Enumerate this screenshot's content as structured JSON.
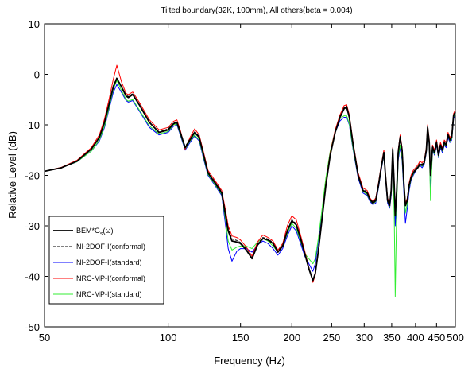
{
  "chart_data": {
    "type": "line",
    "title": "Tilted boundary(32K, 100mm), All others(beta = 0.004)",
    "xlabel": "Frequency (Hz)",
    "ylabel": "Relative Level (dB)",
    "xscale": "log",
    "xlim": [
      50,
      500
    ],
    "ylim": [
      -50,
      10
    ],
    "xticks": [
      50,
      100,
      150,
      200,
      250,
      300,
      350,
      400,
      450,
      500
    ],
    "xtick_labels": [
      "50",
      "100",
      "150",
      "200",
      "250",
      "300",
      "350",
      "400",
      "450",
      "500"
    ],
    "yticks": [
      -50,
      -40,
      -30,
      -20,
      -10,
      0,
      10
    ],
    "ytick_labels": [
      "-50",
      "-40",
      "-30",
      "-20",
      "-10",
      "0",
      "10"
    ],
    "grid": false,
    "legend_position": "bottom-left",
    "legend": {
      "bem_main": "BEM*G",
      "bem_sub": "s",
      "bem_tail": "(ω)"
    },
    "series": [
      {
        "name": "BEM*Gs(ω)",
        "color": "#000000",
        "dash": "solid",
        "width": 1.8,
        "x": [
          50,
          55,
          60,
          65,
          68,
          70,
          72,
          73.5,
          75,
          77,
          79,
          80,
          82,
          85,
          90,
          95,
          100,
          103,
          105,
          107,
          110,
          113,
          116,
          119,
          122,
          125,
          130,
          135,
          138,
          140,
          143,
          147,
          150,
          155,
          160,
          165,
          170,
          175,
          180,
          185,
          190,
          195,
          200,
          205,
          210,
          215,
          220,
          225,
          228,
          232,
          237,
          242,
          248,
          255,
          262,
          268,
          272,
          276,
          282,
          290,
          298,
          305,
          310,
          315,
          320,
          325,
          330,
          335,
          338,
          342,
          346,
          349,
          352,
          355,
          357,
          360,
          363,
          367,
          371,
          375,
          378,
          382,
          386,
          390,
          395,
          400,
          405,
          410,
          415,
          420,
          425,
          428,
          432,
          435,
          440,
          445,
          450,
          455,
          460,
          465,
          470,
          475,
          480,
          485,
          490,
          495,
          500
        ],
        "y": [
          -19.2,
          -18.5,
          -17.2,
          -14.8,
          -12.5,
          -9.5,
          -5.5,
          -2.5,
          -0.8,
          -2.5,
          -4.3,
          -4.6,
          -4.0,
          -6.0,
          -9.5,
          -11.5,
          -11.0,
          -9.8,
          -9.5,
          -11.5,
          -14.5,
          -13.0,
          -11.5,
          -12.5,
          -16.0,
          -19.5,
          -21.5,
          -23.5,
          -28.0,
          -31.0,
          -33.0,
          -33.2,
          -33.5,
          -34.8,
          -36.5,
          -33.8,
          -32.5,
          -32.8,
          -33.5,
          -35.2,
          -34.0,
          -31.0,
          -29.0,
          -29.8,
          -32.5,
          -35.5,
          -38.5,
          -40.8,
          -39.5,
          -35.0,
          -28.5,
          -22.0,
          -16.0,
          -11.5,
          -8.5,
          -6.8,
          -6.5,
          -8.5,
          -14.0,
          -20.0,
          -23.0,
          -23.5,
          -24.8,
          -25.5,
          -25.0,
          -22.0,
          -18.5,
          -15.5,
          -20.0,
          -25.0,
          -26.0,
          -23.0,
          -14.8,
          -22.0,
          -28.0,
          -23.0,
          -15.5,
          -12.5,
          -15.0,
          -22.0,
          -26.0,
          -25.0,
          -22.0,
          -20.5,
          -19.5,
          -19.0,
          -18.5,
          -17.8,
          -18.0,
          -17.5,
          -15.0,
          -10.5,
          -13.5,
          -20.0,
          -14.5,
          -15.5,
          -13.5,
          -16.0,
          -14.0,
          -15.0,
          -13.5,
          -14.0,
          -12.0,
          -13.0,
          -12.5,
          -8.2,
          -7.5
        ]
      },
      {
        "name": "NI-2DOF-I(conformal)",
        "color": "#000000",
        "dash": "dashed",
        "width": 1.0,
        "x": [
          50,
          55,
          60,
          65,
          68,
          70,
          72,
          73.5,
          75,
          77,
          79,
          80,
          82,
          85,
          90,
          95,
          100,
          103,
          105,
          107,
          110,
          113,
          116,
          119,
          122,
          125,
          130,
          135,
          138,
          140,
          143,
          147,
          150,
          155,
          160,
          165,
          170,
          175,
          180,
          185,
          190,
          195,
          200,
          205,
          210,
          215,
          220,
          225,
          228,
          232,
          237,
          242,
          248,
          255,
          262,
          268,
          272,
          276,
          282,
          290,
          298,
          305,
          310,
          315,
          320,
          325,
          330,
          335,
          338,
          342,
          346,
          349,
          352,
          355,
          357,
          360,
          363,
          367,
          371,
          375,
          378,
          382,
          386,
          390,
          395,
          400,
          405,
          410,
          415,
          420,
          425,
          428,
          432,
          435,
          440,
          445,
          450,
          455,
          460,
          465,
          470,
          475,
          480,
          485,
          490,
          495,
          500
        ],
        "y": [
          -19.2,
          -18.5,
          -17.2,
          -14.8,
          -12.5,
          -9.4,
          -5.4,
          -2.3,
          -0.6,
          -2.4,
          -4.1,
          -4.4,
          -3.8,
          -5.9,
          -9.4,
          -11.4,
          -10.8,
          -9.6,
          -9.3,
          -11.3,
          -14.3,
          -12.8,
          -11.3,
          -12.3,
          -15.8,
          -19.3,
          -21.3,
          -23.3,
          -27.5,
          -30.5,
          -32.6,
          -32.9,
          -33.3,
          -34.6,
          -36.3,
          -33.6,
          -32.3,
          -32.6,
          -33.3,
          -35.0,
          -33.8,
          -30.8,
          -28.8,
          -29.6,
          -32.3,
          -35.3,
          -38.3,
          -40.6,
          -39.3,
          -34.8,
          -28.3,
          -21.8,
          -15.8,
          -11.3,
          -8.3,
          -6.6,
          -6.3,
          -8.3,
          -13.8,
          -19.8,
          -22.8,
          -23.3,
          -24.6,
          -25.3,
          -24.8,
          -21.8,
          -18.3,
          -15.3,
          -19.8,
          -24.8,
          -25.8,
          -22.8,
          -14.6,
          -21.8,
          -27.8,
          -22.8,
          -15.3,
          -12.3,
          -14.8,
          -21.8,
          -25.8,
          -24.8,
          -21.8,
          -20.3,
          -19.3,
          -18.8,
          -18.3,
          -17.6,
          -17.8,
          -17.3,
          -14.8,
          -10.3,
          -13.3,
          -19.8,
          -14.3,
          -15.3,
          -13.3,
          -15.8,
          -13.8,
          -14.8,
          -13.3,
          -13.8,
          -11.8,
          -12.8,
          -12.3,
          -8.0,
          -7.3
        ]
      },
      {
        "name": "NI-2DOF-I(standard)",
        "color": "#0000ff",
        "dash": "solid",
        "width": 1.0,
        "x": [
          50,
          55,
          60,
          65,
          68,
          70,
          72,
          73.5,
          75,
          77,
          79,
          80,
          82,
          85,
          90,
          95,
          100,
          103,
          105,
          107,
          110,
          113,
          116,
          119,
          122,
          125,
          130,
          135,
          138,
          140,
          143,
          147,
          150,
          155,
          160,
          165,
          170,
          175,
          180,
          185,
          190,
          195,
          200,
          205,
          210,
          215,
          220,
          225,
          228,
          232,
          237,
          242,
          248,
          255,
          262,
          268,
          272,
          276,
          282,
          290,
          298,
          305,
          310,
          315,
          320,
          325,
          330,
          335,
          338,
          342,
          346,
          349,
          352,
          355,
          357,
          360,
          363,
          367,
          371,
          375,
          378,
          382,
          386,
          390,
          395,
          400,
          405,
          410,
          415,
          420,
          425,
          428,
          432,
          435,
          440,
          445,
          450,
          455,
          460,
          465,
          470,
          475,
          480,
          485,
          490,
          495,
          500
        ],
        "y": [
          -19.2,
          -18.5,
          -17.3,
          -15.2,
          -13.2,
          -10.5,
          -6.5,
          -3.6,
          -2.0,
          -3.6,
          -5.2,
          -5.5,
          -5.2,
          -7.2,
          -10.5,
          -12.0,
          -11.5,
          -10.3,
          -10.0,
          -12.0,
          -15.0,
          -13.5,
          -12.2,
          -13.2,
          -16.8,
          -20.0,
          -22.0,
          -24.0,
          -30.0,
          -34.5,
          -37.0,
          -35.0,
          -34.5,
          -34.5,
          -35.2,
          -33.8,
          -33.0,
          -33.5,
          -34.5,
          -35.8,
          -34.5,
          -32.0,
          -30.0,
          -31.0,
          -33.5,
          -36.0,
          -37.5,
          -39.0,
          -37.5,
          -33.0,
          -27.0,
          -21.0,
          -15.5,
          -11.5,
          -9.2,
          -8.5,
          -8.5,
          -10.0,
          -15.0,
          -20.5,
          -23.5,
          -24.0,
          -25.2,
          -25.8,
          -25.5,
          -22.5,
          -19.0,
          -16.0,
          -20.5,
          -25.5,
          -26.5,
          -24.0,
          -16.0,
          -24.0,
          -30.0,
          -24.5,
          -17.0,
          -14.5,
          -17.0,
          -24.0,
          -29.5,
          -26.5,
          -23.0,
          -21.0,
          -20.0,
          -19.2,
          -18.5,
          -18.0,
          -18.5,
          -17.8,
          -15.5,
          -11.0,
          -14.0,
          -23.0,
          -15.0,
          -16.0,
          -14.0,
          -16.5,
          -14.5,
          -15.5,
          -14.0,
          -14.5,
          -12.5,
          -13.5,
          -13.0,
          -8.8,
          -8.0
        ]
      },
      {
        "name": "NRC-MP-I(conformal)",
        "color": "#ff0000",
        "dash": "solid",
        "width": 1.0,
        "x": [
          50,
          55,
          60,
          65,
          68,
          70,
          72,
          73.5,
          75,
          77,
          79,
          80,
          82,
          85,
          90,
          95,
          100,
          103,
          105,
          107,
          110,
          113,
          116,
          119,
          122,
          125,
          130,
          135,
          138,
          140,
          143,
          147,
          150,
          155,
          160,
          165,
          170,
          175,
          180,
          185,
          190,
          195,
          200,
          205,
          210,
          215,
          220,
          225,
          228,
          232,
          237,
          242,
          248,
          255,
          262,
          268,
          272,
          276,
          282,
          290,
          298,
          305,
          310,
          315,
          320,
          325,
          330,
          335,
          338,
          342,
          346,
          349,
          352,
          355,
          357,
          360,
          363,
          367,
          371,
          375,
          378,
          382,
          386,
          390,
          395,
          400,
          405,
          410,
          415,
          420,
          425,
          428,
          432,
          435,
          440,
          445,
          450,
          455,
          460,
          465,
          470,
          475,
          480,
          485,
          490,
          495,
          500
        ],
        "y": [
          -19.2,
          -18.4,
          -17.0,
          -14.5,
          -12.0,
          -8.8,
          -4.5,
          -1.0,
          1.8,
          -1.5,
          -3.8,
          -4.0,
          -3.5,
          -5.5,
          -9.0,
          -11.0,
          -10.5,
          -9.3,
          -9.0,
          -11.0,
          -14.8,
          -12.5,
          -10.8,
          -12.0,
          -15.5,
          -19.0,
          -21.0,
          -23.0,
          -27.0,
          -30.0,
          -32.0,
          -32.3,
          -32.8,
          -34.2,
          -36.0,
          -33.2,
          -31.8,
          -32.3,
          -33.0,
          -34.8,
          -33.5,
          -30.0,
          -28.0,
          -28.8,
          -31.8,
          -35.0,
          -38.2,
          -41.2,
          -39.8,
          -35.0,
          -28.0,
          -21.5,
          -15.5,
          -11.0,
          -8.0,
          -6.2,
          -6.0,
          -8.0,
          -13.5,
          -19.5,
          -22.5,
          -23.0,
          -24.5,
          -25.2,
          -24.5,
          -21.5,
          -18.0,
          -15.0,
          -19.5,
          -24.5,
          -25.5,
          -22.5,
          -14.5,
          -21.5,
          -27.5,
          -22.5,
          -15.0,
          -12.0,
          -14.5,
          -21.5,
          -25.5,
          -24.5,
          -21.5,
          -20.0,
          -19.0,
          -18.5,
          -18.0,
          -17.2,
          -17.5,
          -17.0,
          -14.5,
          -10.0,
          -13.0,
          -19.5,
          -14.0,
          -15.0,
          -13.0,
          -15.5,
          -13.5,
          -14.5,
          -13.0,
          -13.5,
          -11.5,
          -12.5,
          -12.0,
          -7.8,
          -7.0
        ]
      },
      {
        "name": "NRC-MP-I(standard)",
        "color": "#33ee33",
        "dash": "solid",
        "width": 1.0,
        "x": [
          50,
          55,
          60,
          65,
          68,
          70,
          72,
          73.5,
          75,
          77,
          79,
          80,
          82,
          85,
          90,
          95,
          100,
          103,
          105,
          107,
          110,
          113,
          116,
          119,
          122,
          125,
          130,
          135,
          138,
          140,
          143,
          147,
          150,
          155,
          160,
          165,
          170,
          175,
          180,
          185,
          190,
          195,
          200,
          205,
          210,
          215,
          220,
          225,
          228,
          232,
          237,
          242,
          248,
          255,
          262,
          268,
          272,
          276,
          282,
          290,
          298,
          305,
          310,
          315,
          320,
          325,
          330,
          335,
          338,
          342,
          346,
          349,
          352,
          355,
          357,
          360,
          363,
          367,
          371,
          375,
          378,
          382,
          386,
          390,
          395,
          400,
          405,
          410,
          415,
          420,
          425,
          428,
          432,
          435,
          440,
          445,
          450,
          455,
          460,
          465,
          470,
          475,
          480,
          485,
          490,
          495,
          500
        ],
        "y": [
          -19.2,
          -18.5,
          -17.3,
          -15.2,
          -13.0,
          -10.2,
          -6.2,
          -3.0,
          -1.2,
          -3.2,
          -5.0,
          -5.3,
          -5.0,
          -7.0,
          -10.2,
          -11.8,
          -11.3,
          -10.0,
          -9.8,
          -11.8,
          -14.8,
          -13.2,
          -12.0,
          -13.0,
          -16.5,
          -19.8,
          -21.8,
          -23.8,
          -29.0,
          -33.0,
          -34.8,
          -34.2,
          -34.0,
          -34.0,
          -34.5,
          -33.2,
          -32.5,
          -33.0,
          -34.0,
          -35.2,
          -34.0,
          -31.5,
          -29.5,
          -30.5,
          -33.0,
          -35.5,
          -36.5,
          -37.5,
          -36.5,
          -32.5,
          -26.5,
          -20.5,
          -15.2,
          -11.2,
          -8.8,
          -8.2,
          -8.2,
          -9.8,
          -14.8,
          -20.2,
          -23.2,
          -23.8,
          -25.0,
          -25.6,
          -25.2,
          -22.2,
          -18.8,
          -15.8,
          -20.2,
          -25.2,
          -26.2,
          -23.5,
          -15.5,
          -28.0,
          -44.0,
          -26.0,
          -16.5,
          -14.0,
          -16.5,
          -23.0,
          -27.5,
          -25.5,
          -22.5,
          -20.8,
          -19.8,
          -19.0,
          -18.3,
          -17.8,
          -18.2,
          -17.6,
          -15.2,
          -10.5,
          -14.0,
          -25.0,
          -14.8,
          -15.8,
          -13.8,
          -16.2,
          -14.2,
          -15.2,
          -13.8,
          -14.2,
          -12.2,
          -13.2,
          -12.8,
          -8.5,
          -7.8
        ]
      }
    ]
  }
}
